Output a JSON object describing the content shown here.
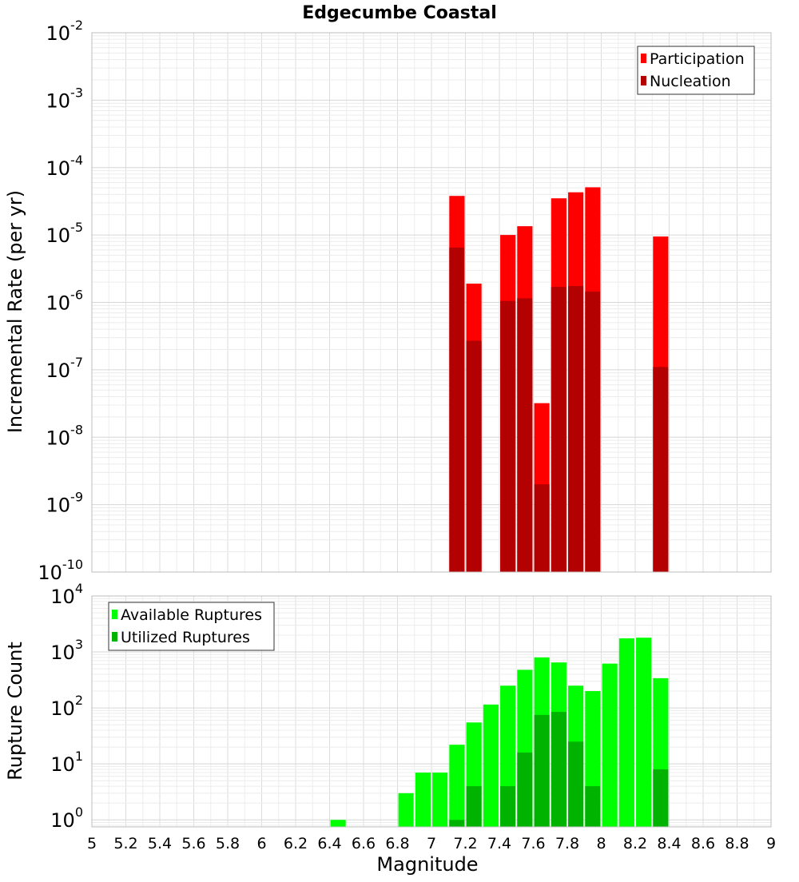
{
  "chart_data": [
    {
      "type": "bar",
      "title": "Edgecumbe Coastal",
      "ylabel": "Incremental Rate (per yr)",
      "xlabel": "",
      "yscale": "log",
      "ylim": [
        1e-10,
        0.01
      ],
      "xlim": [
        5,
        9
      ],
      "bar_width": 0.09,
      "y_ticks": [
        {
          "base": "10",
          "exp": "-10",
          "value": 1e-10
        },
        {
          "base": "10",
          "exp": "-9",
          "value": 1e-09
        },
        {
          "base": "10",
          "exp": "-8",
          "value": 1e-08
        },
        {
          "base": "10",
          "exp": "-7",
          "value": 1e-07
        },
        {
          "base": "10",
          "exp": "-6",
          "value": 1e-06
        },
        {
          "base": "10",
          "exp": "-5",
          "value": 1e-05
        },
        {
          "base": "10",
          "exp": "-4",
          "value": 0.0001
        },
        {
          "base": "10",
          "exp": "-3",
          "value": 0.001
        },
        {
          "base": "10",
          "exp": "-2",
          "value": 0.01
        }
      ],
      "legend_position": "top-right",
      "series": [
        {
          "name": "Participation",
          "color": "#ff0000",
          "x": [
            7.15,
            7.25,
            7.45,
            7.55,
            7.65,
            7.75,
            7.85,
            7.95,
            8.35
          ],
          "values": [
            3.8e-05,
            1.9e-06,
            1e-05,
            1.35e-05,
            3.2e-08,
            3.5e-05,
            4.3e-05,
            5.1e-05,
            9.5e-06
          ]
        },
        {
          "name": "Nucleation",
          "color": "#b30000",
          "x": [
            7.15,
            7.25,
            7.45,
            7.55,
            7.65,
            7.75,
            7.85,
            7.95,
            8.35
          ],
          "values": [
            6.5e-06,
            2.7e-07,
            1.05e-06,
            1.15e-06,
            2e-09,
            1.7e-06,
            1.75e-06,
            1.45e-06,
            1.1e-07
          ]
        }
      ]
    },
    {
      "type": "bar",
      "title": "",
      "ylabel": "Rupture Count",
      "xlabel": "Magnitude",
      "yscale": "log",
      "ylim": [
        0.75,
        10000
      ],
      "xlim": [
        5,
        9
      ],
      "bar_width": 0.09,
      "y_ticks": [
        {
          "base": "10",
          "exp": "0",
          "value": 1
        },
        {
          "base": "10",
          "exp": "1",
          "value": 10
        },
        {
          "base": "10",
          "exp": "2",
          "value": 100
        },
        {
          "base": "10",
          "exp": "3",
          "value": 1000
        },
        {
          "base": "10",
          "exp": "4",
          "value": 10000
        }
      ],
      "x_ticks": [
        "5",
        "5.2",
        "5.4",
        "5.6",
        "5.8",
        "6",
        "6.2",
        "6.4",
        "6.6",
        "6.8",
        "7",
        "7.2",
        "7.4",
        "7.6",
        "7.8",
        "8",
        "8.2",
        "8.4",
        "8.6",
        "8.8",
        "9"
      ],
      "legend_position": "top-left",
      "series": [
        {
          "name": "Available Ruptures",
          "color": "#00ff00",
          "x": [
            6.45,
            6.85,
            6.95,
            7.05,
            7.15,
            7.25,
            7.35,
            7.45,
            7.55,
            7.65,
            7.75,
            7.85,
            7.95,
            8.05,
            8.15,
            8.25,
            8.35
          ],
          "values": [
            1,
            3,
            7,
            7,
            22,
            55,
            115,
            250,
            480,
            800,
            650,
            250,
            200,
            620,
            1750,
            1800,
            340
          ]
        },
        {
          "name": "Utilized Ruptures",
          "color": "#00b300",
          "x": [
            7.15,
            7.25,
            7.45,
            7.55,
            7.65,
            7.75,
            7.85,
            7.95,
            8.35
          ],
          "values": [
            1,
            4,
            4,
            16,
            75,
            85,
            25,
            4,
            8
          ]
        }
      ]
    }
  ]
}
